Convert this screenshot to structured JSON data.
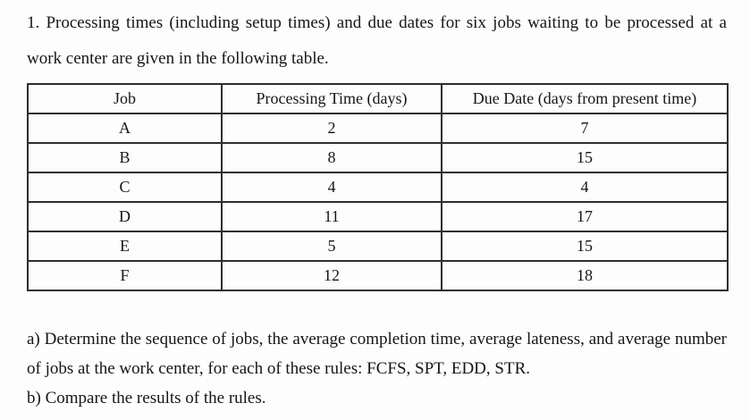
{
  "intro": "1. Processing times (including setup times) and due dates for six jobs waiting to be processed at a work center are given in the following table.",
  "table": {
    "headers": [
      "Job",
      "Processing Time (days)",
      "Due Date (days from present time)"
    ],
    "rows": [
      {
        "job": "A",
        "processing_time": "2",
        "due_date": "7"
      },
      {
        "job": "B",
        "processing_time": "8",
        "due_date": "15"
      },
      {
        "job": "C",
        "processing_time": "4",
        "due_date": "4"
      },
      {
        "job": "D",
        "processing_time": "11",
        "due_date": "17"
      },
      {
        "job": "E",
        "processing_time": "5",
        "due_date": "15"
      },
      {
        "job": "F",
        "processing_time": "12",
        "due_date": "18"
      }
    ]
  },
  "questions": {
    "a": "a) Determine the sequence of jobs, the average completion time, average lateness, and average number of jobs at the work center, for each of these rules: FCFS, SPT, EDD, STR.",
    "b": "b) Compare the results of the rules."
  }
}
